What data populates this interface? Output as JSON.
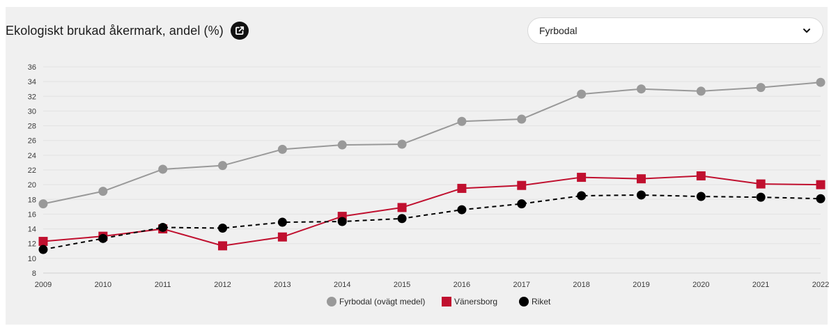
{
  "header": {
    "title": "Ekologiskt brukad åkermark, andel (%)",
    "external_link_icon": "external-link-icon"
  },
  "region_select": {
    "value": "Fyrbodal",
    "icon": "chevron-down-icon"
  },
  "colors": {
    "fyrbodal": "#999999",
    "vanersborg": "#c0102f",
    "riket": "#000000",
    "panel": "#f0f0f0"
  },
  "chart_data": {
    "type": "line",
    "title": "Ekologiskt brukad åkermark, andel (%)",
    "xlabel": "",
    "ylabel": "",
    "x": [
      2009,
      2010,
      2011,
      2012,
      2013,
      2014,
      2015,
      2016,
      2017,
      2018,
      2019,
      2020,
      2021,
      2022
    ],
    "ylim": [
      8,
      36
    ],
    "yticks": [
      8,
      10,
      12,
      14,
      16,
      18,
      20,
      22,
      24,
      26,
      28,
      30,
      32,
      34,
      36
    ],
    "grid": true,
    "legend_position": "bottom",
    "series": [
      {
        "name": "Fyrbodal (ovägt medel)",
        "marker": "circle",
        "line": "solid",
        "color": "#999999",
        "values": [
          17.4,
          19.1,
          22.1,
          22.6,
          24.8,
          25.4,
          25.5,
          28.6,
          28.9,
          32.3,
          33.0,
          32.7,
          33.2,
          33.9
        ]
      },
      {
        "name": "Vänersborg",
        "marker": "square",
        "line": "solid",
        "color": "#c0102f",
        "values": [
          12.3,
          13.0,
          14.0,
          11.7,
          12.9,
          15.7,
          16.9,
          19.5,
          19.9,
          21.0,
          20.8,
          21.2,
          20.1,
          20.0
        ]
      },
      {
        "name": "Riket",
        "marker": "circle",
        "line": "dashed",
        "color": "#000000",
        "values": [
          11.2,
          12.7,
          14.2,
          14.1,
          14.9,
          15.0,
          15.4,
          16.6,
          17.4,
          18.5,
          18.6,
          18.4,
          18.3,
          18.1
        ]
      }
    ]
  }
}
